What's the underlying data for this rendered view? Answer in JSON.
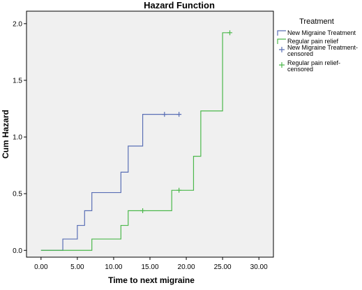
{
  "chart_data": {
    "type": "line",
    "title": "Hazard Function",
    "xlabel": "Time to next migraine",
    "ylabel": "Cum Hazard",
    "xlim": [
      -2,
      32
    ],
    "ylim": [
      -0.06,
      2.11
    ],
    "xticks": [
      "0.00",
      "5.00",
      "10.00",
      "15.00",
      "20.00",
      "25.00",
      "30.00"
    ],
    "xtick_values": [
      0,
      5,
      10,
      15,
      20,
      25,
      30
    ],
    "yticks": [
      "0.0",
      "0.5",
      "1.0",
      "1.5",
      "2.0"
    ],
    "ytick_values": [
      0,
      0.5,
      1.0,
      1.5,
      2.0
    ],
    "grid": false,
    "plot_background": "#f0f0f0",
    "legend": {
      "title": "Treatment",
      "placement": "right",
      "entries": [
        {
          "label": "New Migraine Treatment",
          "color": "#5a6fb5",
          "marker": "line"
        },
        {
          "label": "Regular pain relief",
          "color": "#4cb84c",
          "marker": "line"
        },
        {
          "label": "New Migraine Treatment-censored",
          "lines": [
            "New Migraine Treatment-",
            "censored"
          ],
          "color": "#5a6fb5",
          "marker": "plus"
        },
        {
          "label": "Regular pain relief-censored",
          "lines": [
            "Regular pain relief-",
            "censored"
          ],
          "color": "#4cb84c",
          "marker": "plus"
        }
      ]
    },
    "series": [
      {
        "name": "New Migraine Treatment",
        "color": "#5a6fb5",
        "steps": [
          {
            "x": 0,
            "y": 0
          },
          {
            "x": 3,
            "y": 0.1
          },
          {
            "x": 5,
            "y": 0.22
          },
          {
            "x": 6,
            "y": 0.35
          },
          {
            "x": 7,
            "y": 0.51
          },
          {
            "x": 11,
            "y": 0.69
          },
          {
            "x": 12,
            "y": 0.92
          },
          {
            "x": 14,
            "y": 1.2
          }
        ],
        "end_x": 19,
        "censored": [
          {
            "x": 17,
            "y": 1.2
          },
          {
            "x": 19,
            "y": 1.2
          }
        ]
      },
      {
        "name": "Regular pain relief",
        "color": "#4cb84c",
        "steps": [
          {
            "x": 0,
            "y": 0
          },
          {
            "x": 7,
            "y": 0.1
          },
          {
            "x": 11,
            "y": 0.22
          },
          {
            "x": 12,
            "y": 0.35
          },
          {
            "x": 18,
            "y": 0.53
          },
          {
            "x": 21,
            "y": 0.83
          },
          {
            "x": 22,
            "y": 1.23
          },
          {
            "x": 25,
            "y": 1.92
          }
        ],
        "end_x": 26,
        "censored": [
          {
            "x": 14,
            "y": 0.35
          },
          {
            "x": 19,
            "y": 0.53
          },
          {
            "x": 26,
            "y": 1.92
          }
        ]
      }
    ]
  }
}
